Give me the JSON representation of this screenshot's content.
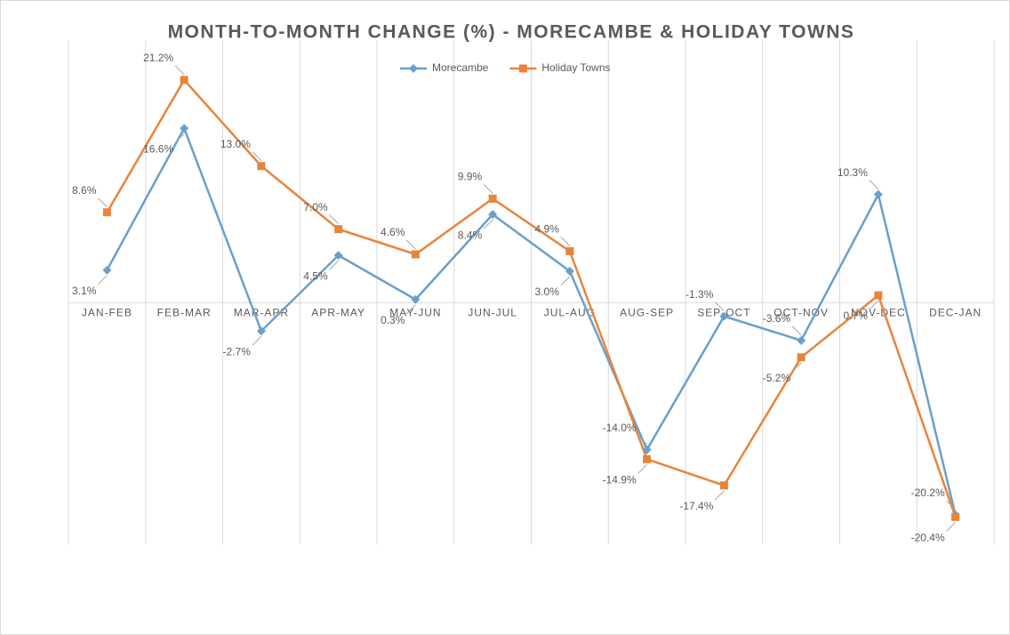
{
  "chart_data": {
    "type": "line",
    "title": "MONTH-TO-MONTH CHANGE (%) - MORECAMBE & HOLIDAY TOWNS",
    "categories": [
      "JAN-FEB",
      "FEB-MAR",
      "MAR-APR",
      "APR-MAY",
      "MAY-JUN",
      "JUN-JUL",
      "JUL-AUG",
      "AUG-SEP",
      "SEP-OCT",
      "OCT-NOV",
      "NOV-DEC",
      "DEC-JAN"
    ],
    "series": [
      {
        "name": "Morecambe",
        "color": "#6a9fcb",
        "marker": "diamond",
        "values": [
          3.1,
          16.6,
          -2.7,
          4.5,
          0.3,
          8.4,
          3.0,
          -14.0,
          -1.3,
          -3.6,
          10.3,
          -20.2
        ],
        "value_labels": [
          "3.1%",
          "16.6%",
          "-2.7%",
          "4.5%",
          "0.3%",
          "8.4%",
          "3.0%",
          "-14.0%",
          "-1.3%",
          "-3.6%",
          "10.3%",
          "-20.2%"
        ]
      },
      {
        "name": "Holiday Towns",
        "color": "#e8843a",
        "marker": "square",
        "values": [
          8.6,
          21.2,
          13.0,
          7.0,
          4.6,
          9.9,
          4.9,
          -14.9,
          -17.4,
          -5.2,
          0.7,
          -20.4
        ],
        "value_labels": [
          "8.6%",
          "21.2%",
          "13.0%",
          "7.0%",
          "4.6%",
          "9.9%",
          "4.9%",
          "-14.9%",
          "-17.4%",
          "-5.2%",
          "0.7%",
          "-20.4%"
        ]
      }
    ],
    "ylim": [
      -23,
      25
    ],
    "grid": true,
    "legend": "top"
  }
}
